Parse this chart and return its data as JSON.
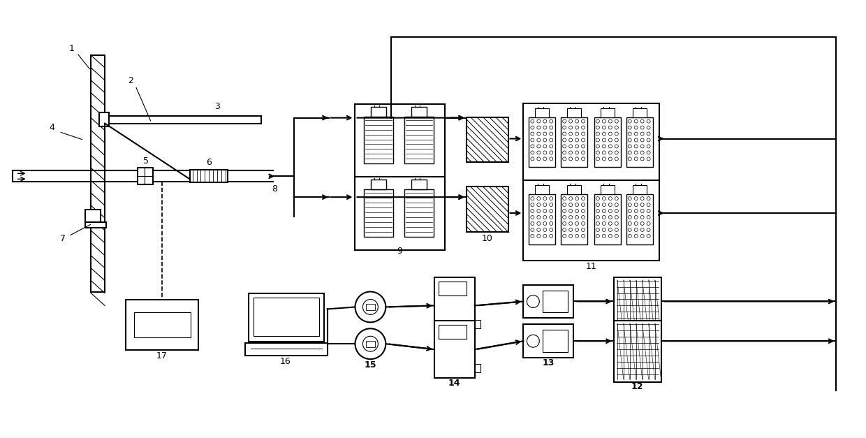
{
  "bg_color": "#ffffff",
  "lc": "#000000",
  "lw": 1.5,
  "fig_width": 12.4,
  "fig_height": 6.27,
  "dpi": 100
}
